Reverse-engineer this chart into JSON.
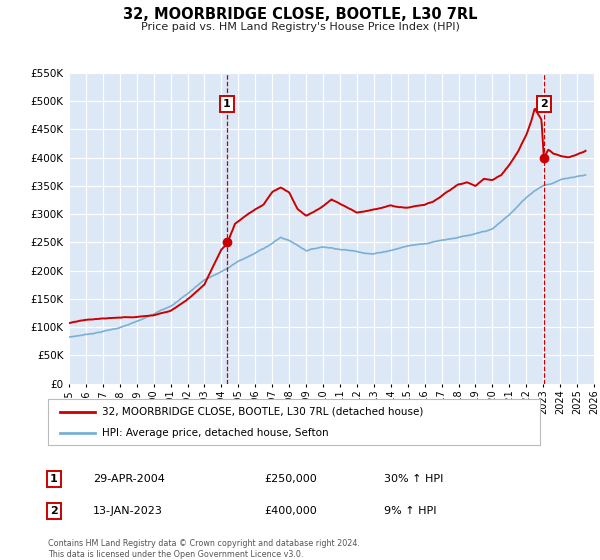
{
  "title": "32, MOORBRIDGE CLOSE, BOOTLE, L30 7RL",
  "subtitle": "Price paid vs. HM Land Registry's House Price Index (HPI)",
  "legend_line1": "32, MOORBRIDGE CLOSE, BOOTLE, L30 7RL (detached house)",
  "legend_line2": "HPI: Average price, detached house, Sefton",
  "annotation1_label": "1",
  "annotation1_date": "29-APR-2004",
  "annotation1_price": "£250,000",
  "annotation1_hpi": "30% ↑ HPI",
  "annotation2_label": "2",
  "annotation2_date": "13-JAN-2023",
  "annotation2_price": "£400,000",
  "annotation2_hpi": "9% ↑ HPI",
  "footer_line1": "Contains HM Land Registry data © Crown copyright and database right 2024.",
  "footer_line2": "This data is licensed under the Open Government Licence v3.0.",
  "red_color": "#cc0000",
  "blue_color": "#7ab0d4",
  "plot_bg_color": "#dce8f5",
  "grid_color": "#ffffff",
  "sale1_x": 2004.33,
  "sale1_y": 250000,
  "sale2_x": 2023.04,
  "sale2_y": 400000,
  "vline1_x": 2004.33,
  "vline2_x": 2023.04,
  "xmin": 1995,
  "xmax": 2026,
  "ymin": 0,
  "ymax": 550000,
  "yticks": [
    0,
    50000,
    100000,
    150000,
    200000,
    250000,
    300000,
    350000,
    400000,
    450000,
    500000,
    550000
  ],
  "hpi_keypoints": [
    [
      1995.0,
      82000
    ],
    [
      1996.0,
      87000
    ],
    [
      1997.0,
      93000
    ],
    [
      1998.0,
      100000
    ],
    [
      1999.0,
      110000
    ],
    [
      2000.0,
      122000
    ],
    [
      2001.0,
      138000
    ],
    [
      2002.0,
      160000
    ],
    [
      2003.0,
      185000
    ],
    [
      2004.0,
      200000
    ],
    [
      2004.5,
      208000
    ],
    [
      2005.0,
      218000
    ],
    [
      2006.0,
      232000
    ],
    [
      2007.0,
      250000
    ],
    [
      2007.5,
      260000
    ],
    [
      2008.0,
      255000
    ],
    [
      2009.0,
      238000
    ],
    [
      2010.0,
      245000
    ],
    [
      2011.0,
      242000
    ],
    [
      2012.0,
      238000
    ],
    [
      2013.0,
      235000
    ],
    [
      2014.0,
      242000
    ],
    [
      2015.0,
      250000
    ],
    [
      2016.0,
      255000
    ],
    [
      2017.0,
      262000
    ],
    [
      2018.0,
      268000
    ],
    [
      2019.0,
      272000
    ],
    [
      2020.0,
      280000
    ],
    [
      2021.0,
      305000
    ],
    [
      2021.5,
      320000
    ],
    [
      2022.0,
      335000
    ],
    [
      2022.5,
      348000
    ],
    [
      2023.0,
      358000
    ],
    [
      2023.5,
      362000
    ],
    [
      2024.0,
      368000
    ],
    [
      2025.0,
      375000
    ],
    [
      2025.5,
      378000
    ]
  ],
  "red_keypoints": [
    [
      1995.0,
      107000
    ],
    [
      1996.0,
      112000
    ],
    [
      1997.0,
      114000
    ],
    [
      1998.0,
      116000
    ],
    [
      1999.0,
      118000
    ],
    [
      2000.0,
      122000
    ],
    [
      2001.0,
      130000
    ],
    [
      2002.0,
      150000
    ],
    [
      2003.0,
      178000
    ],
    [
      2003.5,
      210000
    ],
    [
      2004.0,
      240000
    ],
    [
      2004.33,
      250000
    ],
    [
      2004.8,
      285000
    ],
    [
      2005.5,
      300000
    ],
    [
      2006.5,
      318000
    ],
    [
      2007.0,
      340000
    ],
    [
      2007.5,
      348000
    ],
    [
      2008.0,
      340000
    ],
    [
      2008.5,
      310000
    ],
    [
      2009.0,
      298000
    ],
    [
      2009.5,
      305000
    ],
    [
      2010.0,
      315000
    ],
    [
      2010.5,
      328000
    ],
    [
      2011.0,
      320000
    ],
    [
      2011.5,
      312000
    ],
    [
      2012.0,
      305000
    ],
    [
      2012.5,
      308000
    ],
    [
      2013.0,
      312000
    ],
    [
      2013.5,
      315000
    ],
    [
      2014.0,
      320000
    ],
    [
      2014.5,
      316000
    ],
    [
      2015.0,
      315000
    ],
    [
      2015.5,
      318000
    ],
    [
      2016.0,
      320000
    ],
    [
      2016.5,
      325000
    ],
    [
      2017.0,
      335000
    ],
    [
      2017.5,
      345000
    ],
    [
      2018.0,
      355000
    ],
    [
      2018.5,
      358000
    ],
    [
      2019.0,
      352000
    ],
    [
      2019.5,
      365000
    ],
    [
      2020.0,
      362000
    ],
    [
      2020.5,
      370000
    ],
    [
      2021.0,
      388000
    ],
    [
      2021.5,
      410000
    ],
    [
      2022.0,
      440000
    ],
    [
      2022.3,
      465000
    ],
    [
      2022.5,
      488000
    ],
    [
      2022.7,
      478000
    ],
    [
      2022.9,
      468000
    ],
    [
      2023.04,
      400000
    ],
    [
      2023.3,
      415000
    ],
    [
      2023.6,
      408000
    ],
    [
      2024.0,
      405000
    ],
    [
      2024.5,
      402000
    ],
    [
      2025.0,
      408000
    ],
    [
      2025.5,
      415000
    ]
  ]
}
